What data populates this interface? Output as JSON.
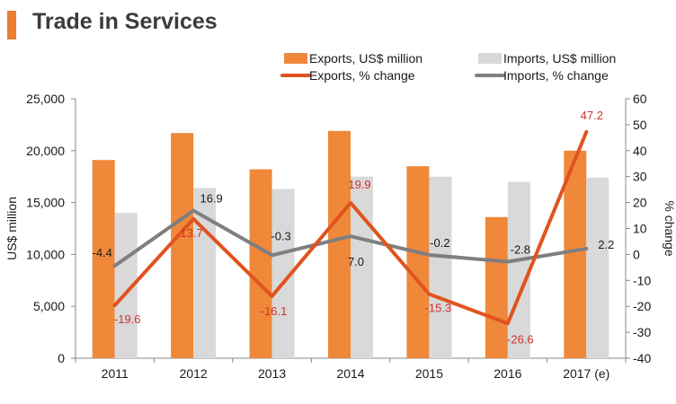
{
  "header": {
    "title": "Trade in Services"
  },
  "colors": {
    "exports_bar": "#F0883A",
    "imports_bar": "#D9D9D9",
    "exports_line": "#E0531F",
    "imports_line": "#7F7F7F",
    "label_red": "#D0302A",
    "axis": "#888888",
    "text": "#1a1a1a"
  },
  "chart_data": {
    "type": "bar",
    "title": "Trade in Services",
    "categories": [
      "2011",
      "2012",
      "2013",
      "2014",
      "2015",
      "2016",
      "2017 (e)"
    ],
    "ylabel": "US$ million",
    "y2label": "% change",
    "ylim": [
      0,
      25000
    ],
    "y2lim": [
      -40,
      60
    ],
    "yticks": [
      0,
      5000,
      10000,
      15000,
      20000,
      25000
    ],
    "ytick_labels": [
      "0",
      "5,000",
      "10,000",
      "15,000",
      "20,000",
      "25,000"
    ],
    "y2ticks": [
      -40,
      -30,
      -20,
      -10,
      0,
      10,
      20,
      30,
      40,
      50,
      60
    ],
    "y2tick_labels": [
      "-40",
      "-30",
      "-20",
      "-10",
      "0",
      "10",
      "20",
      "30",
      "40",
      "50",
      "60"
    ],
    "series": [
      {
        "name": "Exports, US$ million",
        "kind": "bar",
        "axis": "left",
        "values": [
          19100,
          21700,
          18200,
          21900,
          18500,
          13600,
          20000
        ]
      },
      {
        "name": "Imports, US$ million",
        "kind": "bar",
        "axis": "left",
        "values": [
          14000,
          16400,
          16300,
          17500,
          17500,
          17000,
          17400
        ]
      },
      {
        "name": "Exports, % change",
        "kind": "line",
        "axis": "right",
        "values": [
          -19.6,
          13.7,
          -16.1,
          19.9,
          -15.3,
          -26.6,
          47.2
        ],
        "labels": [
          "-19.6",
          "13.7",
          "-16.1",
          "19.9",
          "-15.3",
          "-26.6",
          "47.2"
        ]
      },
      {
        "name": "Imports, % change",
        "kind": "line",
        "axis": "right",
        "values": [
          -4.4,
          16.9,
          -0.3,
          7.0,
          -0.2,
          -2.8,
          2.2
        ],
        "labels": [
          "-4.4",
          "16.9",
          "-0.3",
          "7.0",
          "-0.2",
          "-2.8",
          "2.2"
        ]
      }
    ],
    "legend": "top-right",
    "grid": false
  }
}
